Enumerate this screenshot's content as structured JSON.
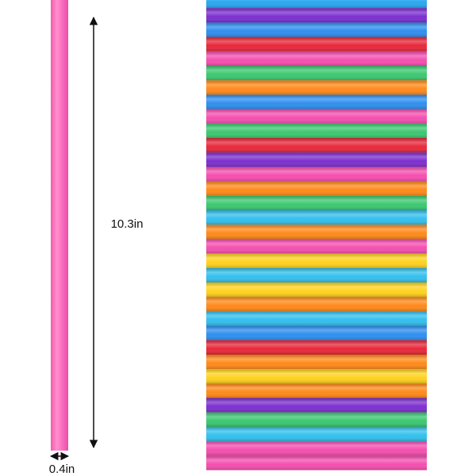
{
  "labels": {
    "length": "10.3in",
    "diameter": "0.4in"
  }
}
